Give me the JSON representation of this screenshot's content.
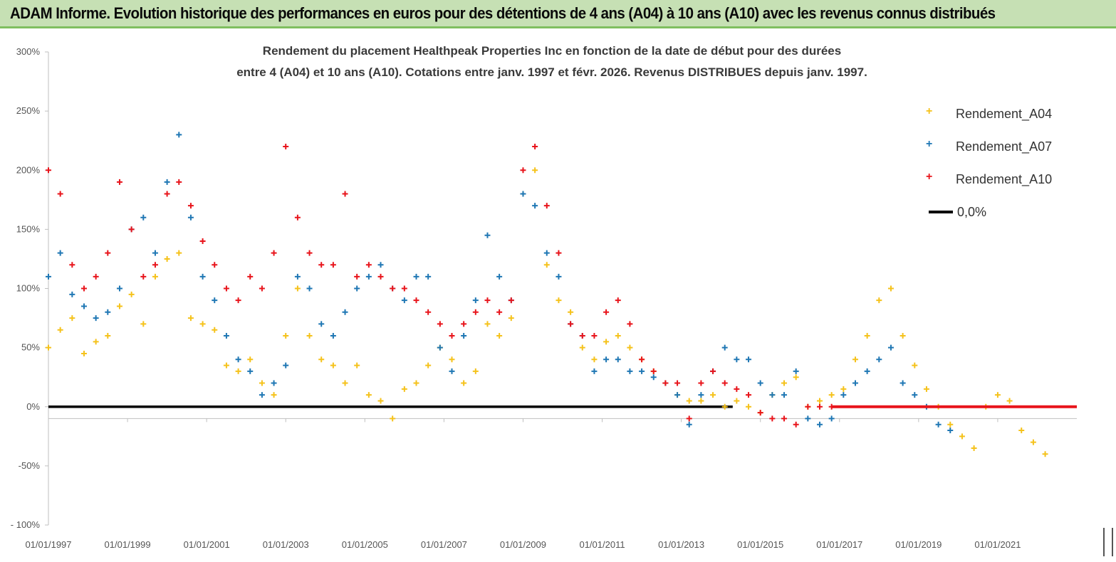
{
  "banner": {
    "title": "ADAM Informe. Evolution historique des performances en euros pour des détentions de 4 ans (A04) à 10 ans (A10) avec les revenus connus distribués"
  },
  "chart_data": {
    "type": "scatter",
    "title_line1": "Rendement du placement Healthpeak Properties Inc en fonction de la date de début pour des durées",
    "title_line2": "entre 4 (A04) et 10 ans (A10).  Cotations entre janv. 1997 et févr. 2026. Revenus DISTRIBUES depuis janv. 1997.",
    "ylim": [
      -100,
      300
    ],
    "xlim": [
      1997.0,
      2023.0
    ],
    "y_ticks": [
      {
        "value": 300,
        "label": "300%"
      },
      {
        "value": 250,
        "label": "250%"
      },
      {
        "value": 200,
        "label": "200%"
      },
      {
        "value": 150,
        "label": "150%"
      },
      {
        "value": 100,
        "label": "100%"
      },
      {
        "value": 50,
        "label": "50%"
      },
      {
        "value": 0,
        "label": "0%"
      },
      {
        "value": -50,
        "label": "-50%"
      },
      {
        "value": -100,
        "label": "- 100%"
      }
    ],
    "x_ticks": [
      {
        "value": 1997,
        "label": "01/01/1997"
      },
      {
        "value": 1999,
        "label": "01/01/1999"
      },
      {
        "value": 2001,
        "label": "01/01/2001"
      },
      {
        "value": 2003,
        "label": "01/01/2003"
      },
      {
        "value": 2005,
        "label": "01/01/2005"
      },
      {
        "value": 2007,
        "label": "01/01/2007"
      },
      {
        "value": 2009,
        "label": "01/01/2009"
      },
      {
        "value": 2011,
        "label": "01/01/2011"
      },
      {
        "value": 2013,
        "label": "01/01/2013"
      },
      {
        "value": 2015,
        "label": "01/01/2015"
      },
      {
        "value": 2017,
        "label": "01/01/2017"
      },
      {
        "value": 2019,
        "label": "01/01/2019"
      },
      {
        "value": 2021,
        "label": "01/01/2021"
      }
    ],
    "grid": false,
    "legend_position": "top-right",
    "series": [
      {
        "name": "Rendement_A04",
        "color": "#f5c21b",
        "x": [
          1997.0,
          1997.3,
          1997.6,
          1997.9,
          1998.2,
          1998.5,
          1998.8,
          1999.1,
          1999.4,
          1999.7,
          2000.0,
          2000.3,
          2000.6,
          2000.9,
          2001.2,
          2001.5,
          2001.8,
          2002.1,
          2002.4,
          2002.7,
          2003.0,
          2003.3,
          2003.6,
          2003.9,
          2004.2,
          2004.5,
          2004.8,
          2005.1,
          2005.4,
          2005.7,
          2006.0,
          2006.3,
          2006.6,
          2006.9,
          2007.2,
          2007.5,
          2007.8,
          2008.1,
          2008.4,
          2008.7,
          2009.0,
          2009.3,
          2009.6,
          2009.9,
          2010.2,
          2010.5,
          2010.8,
          2011.1,
          2011.4,
          2011.7,
          2012.0,
          2012.3,
          2012.6,
          2012.9,
          2013.2,
          2013.5,
          2013.8,
          2014.1,
          2014.4,
          2014.7,
          2015.0,
          2015.3,
          2015.6,
          2015.9,
          2016.2,
          2016.5,
          2016.8,
          2017.1,
          2017.4,
          2017.7,
          2018.0,
          2018.3,
          2018.6,
          2018.9,
          2019.2,
          2019.5,
          2019.8,
          2020.1,
          2020.4,
          2020.7,
          2021.0,
          2021.3,
          2021.6,
          2021.9,
          2022.2
        ],
        "y": [
          50,
          65,
          75,
          45,
          55,
          60,
          85,
          95,
          70,
          110,
          125,
          130,
          75,
          70,
          65,
          35,
          30,
          40,
          20,
          10,
          60,
          100,
          60,
          40,
          35,
          20,
          35,
          10,
          5,
          -10,
          15,
          20,
          35,
          50,
          40,
          20,
          30,
          70,
          60,
          75,
          180,
          200,
          120,
          90,
          80,
          50,
          40,
          55,
          60,
          50,
          40,
          30,
          20,
          10,
          5,
          5,
          10,
          0,
          5,
          0,
          -5,
          10,
          20,
          25,
          0,
          5,
          10,
          15,
          40,
          60,
          90,
          100,
          60,
          35,
          15,
          0,
          -15,
          -25,
          -35,
          0,
          10,
          5,
          -20,
          -30,
          -40
        ]
      },
      {
        "name": "Rendement_A07",
        "color": "#1f77b4",
        "x": [
          1997.0,
          1997.3,
          1997.6,
          1997.9,
          1998.2,
          1998.5,
          1998.8,
          1999.1,
          1999.4,
          1999.7,
          2000.0,
          2000.3,
          2000.6,
          2000.9,
          2001.2,
          2001.5,
          2001.8,
          2002.1,
          2002.4,
          2002.7,
          2003.0,
          2003.3,
          2003.6,
          2003.9,
          2004.2,
          2004.5,
          2004.8,
          2005.1,
          2005.4,
          2005.7,
          2006.0,
          2006.3,
          2006.6,
          2006.9,
          2007.2,
          2007.5,
          2007.8,
          2008.1,
          2008.4,
          2008.7,
          2009.0,
          2009.3,
          2009.6,
          2009.9,
          2010.2,
          2010.5,
          2010.8,
          2011.1,
          2011.4,
          2011.7,
          2012.0,
          2012.3,
          2012.6,
          2012.9,
          2013.2,
          2013.5,
          2013.8,
          2014.1,
          2014.4,
          2014.7,
          2015.0,
          2015.3,
          2015.6,
          2015.9,
          2016.2,
          2016.5,
          2016.8,
          2017.1,
          2017.4,
          2017.7,
          2018.0,
          2018.3,
          2018.6,
          2018.9,
          2019.2,
          2019.5,
          2019.8
        ],
        "y": [
          110,
          130,
          95,
          85,
          75,
          80,
          100,
          150,
          160,
          130,
          190,
          230,
          160,
          110,
          90,
          60,
          40,
          30,
          10,
          20,
          35,
          110,
          100,
          70,
          60,
          80,
          100,
          110,
          120,
          100,
          90,
          110,
          110,
          50,
          30,
          60,
          90,
          145,
          110,
          90,
          180,
          170,
          130,
          110,
          70,
          60,
          30,
          40,
          40,
          30,
          30,
          25,
          20,
          10,
          -15,
          10,
          30,
          50,
          40,
          40,
          20,
          10,
          10,
          30,
          -10,
          -15,
          -10,
          10,
          20,
          30,
          40,
          50,
          20,
          10,
          0,
          -15,
          -20
        ]
      },
      {
        "name": "Rendement_A10",
        "color": "#e8141b",
        "x": [
          1997.0,
          1997.3,
          1997.6,
          1997.9,
          1998.2,
          1998.5,
          1998.8,
          1999.1,
          1999.4,
          1999.7,
          2000.0,
          2000.3,
          2000.6,
          2000.9,
          2001.2,
          2001.5,
          2001.8,
          2002.1,
          2002.4,
          2002.7,
          2003.0,
          2003.3,
          2003.6,
          2003.9,
          2004.2,
          2004.5,
          2004.8,
          2005.1,
          2005.4,
          2005.7,
          2006.0,
          2006.3,
          2006.6,
          2006.9,
          2007.2,
          2007.5,
          2007.8,
          2008.1,
          2008.4,
          2008.7,
          2009.0,
          2009.3,
          2009.6,
          2009.9,
          2010.2,
          2010.5,
          2010.8,
          2011.1,
          2011.4,
          2011.7,
          2012.0,
          2012.3,
          2012.6,
          2012.9,
          2013.2,
          2013.5,
          2013.8,
          2014.1,
          2014.4,
          2014.7,
          2015.0,
          2015.3,
          2015.6,
          2015.9,
          2016.2,
          2016.5,
          2016.8
        ],
        "y": [
          200,
          180,
          120,
          100,
          110,
          130,
          190,
          150,
          110,
          120,
          180,
          190,
          170,
          140,
          120,
          100,
          90,
          110,
          100,
          130,
          220,
          160,
          130,
          120,
          120,
          180,
          110,
          120,
          110,
          100,
          100,
          90,
          80,
          70,
          60,
          70,
          80,
          90,
          80,
          90,
          200,
          220,
          170,
          130,
          70,
          60,
          60,
          80,
          90,
          70,
          40,
          30,
          20,
          20,
          -10,
          20,
          30,
          20,
          15,
          10,
          -5,
          -10,
          -10,
          -15,
          0,
          0,
          0
        ]
      },
      {
        "name": "0,0%",
        "color": "#000000",
        "x": [
          1997.0,
          2014.3
        ],
        "y": [
          0,
          0
        ]
      }
    ]
  },
  "legend": {
    "a04": "Rendement_A04",
    "a07": "Rendement_A07",
    "a10": "Rendement_A10",
    "zero": "0,0%"
  }
}
